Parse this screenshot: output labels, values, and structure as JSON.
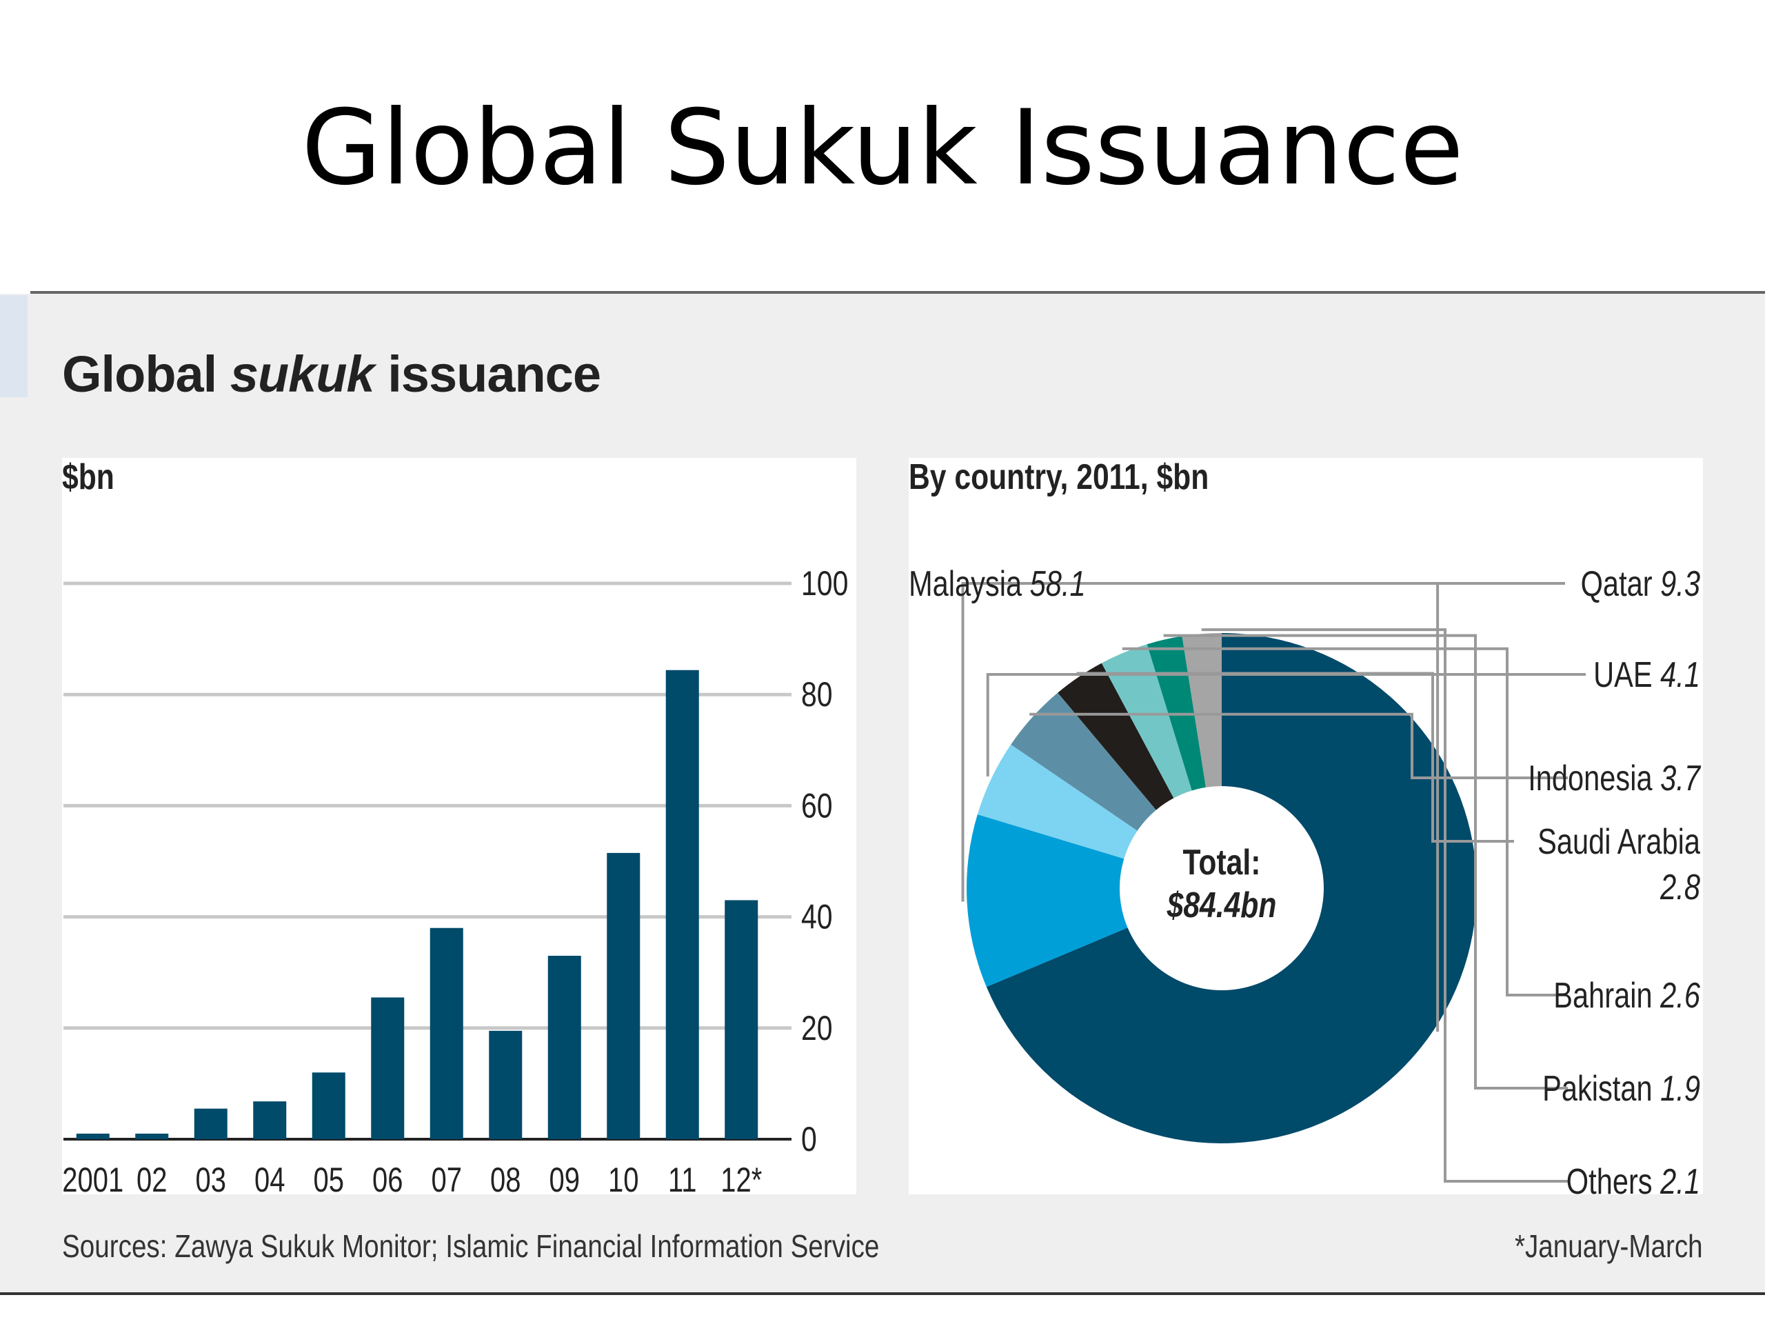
{
  "slide": {
    "title": "Global Sukuk Issuance"
  },
  "panel": {
    "title_part1": "Global ",
    "title_part2": "sukuk",
    "title_part3": " issuance",
    "source": "Sources: Zawya Sukuk Monitor; Islamic Financial Information Service",
    "footnote": "*January-March"
  },
  "colors": {
    "bar": "#004a6a",
    "grid": "#c8c8c8",
    "panel_bg": "#efefef",
    "malaysia": "#004a6a",
    "qatar": "#009fd8",
    "uae": "#7dd3f2",
    "indonesia": "#5c8fa5",
    "saudi_arabia": "#221e1c",
    "bahrain": "#73c6c6",
    "pakistan": "#008877",
    "others": "#a5a5a5"
  },
  "chart_data": [
    {
      "type": "bar",
      "title": "",
      "ylabel": "$bn",
      "xlabel": "",
      "categories": [
        "2001",
        "02",
        "03",
        "04",
        "05",
        "06",
        "07",
        "08",
        "09",
        "10",
        "11",
        "12*"
      ],
      "values": [
        1,
        1,
        5.5,
        6.8,
        12,
        25.5,
        38,
        19.5,
        33,
        51.5,
        84.4,
        43
      ],
      "ylim": [
        0,
        100
      ],
      "yticks": [
        0,
        20,
        40,
        60,
        80,
        100
      ],
      "y_axis_position": "right",
      "grid": true
    },
    {
      "type": "pie",
      "title": "By country, 2011, $bn",
      "center_label_line1": "Total:",
      "center_label_line2": "$84.4bn",
      "donut": true,
      "slices": [
        {
          "key": "malaysia",
          "name": "Malaysia",
          "value": 58.1
        },
        {
          "key": "qatar",
          "name": "Qatar",
          "value": 9.3
        },
        {
          "key": "uae",
          "name": "UAE",
          "value": 4.1
        },
        {
          "key": "indonesia",
          "name": "Indonesia",
          "value": 3.7
        },
        {
          "key": "saudi_arabia",
          "name": "Saudi Arabia",
          "value": 2.8
        },
        {
          "key": "bahrain",
          "name": "Bahrain",
          "value": 2.6
        },
        {
          "key": "pakistan",
          "name": "Pakistan",
          "value": 1.9
        },
        {
          "key": "others",
          "name": "Others",
          "value": 2.1
        }
      ]
    }
  ]
}
